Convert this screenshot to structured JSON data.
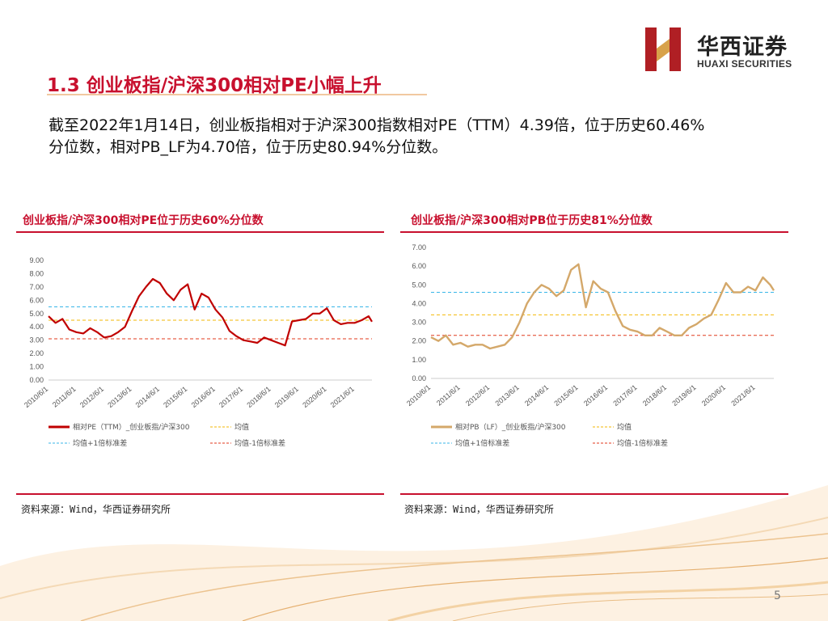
{
  "header": {
    "logo_cn": "华西证券",
    "logo_en": "HUAXI SECURITIES"
  },
  "slide": {
    "title": "1.3 创业板指/沪深300相对PE小幅上升",
    "summary": "截至2022年1月14日，创业板指相对于沪深300指数相对PE（TTM）4.39倍，位于历史60.46%分位数，相对PB_LF为4.70倍，位于历史80.94%分位数。",
    "page_number": "5"
  },
  "colors": {
    "accent_red": "#c8102e",
    "pe_line": "#c00000",
    "pb_line": "#d4a86a",
    "mean_line": "#f2b705",
    "plus1_line": "#38b6e8",
    "minus1_line": "#e03a1e"
  },
  "chart_data": [
    {
      "type": "line",
      "title": "创业板指/沪深300相对PE位于历史60%分位数",
      "source": "资料来源：Wind，华西证券研究所",
      "ylim": [
        0,
        9
      ],
      "yticks": [
        "0.00",
        "1.00",
        "2.00",
        "3.00",
        "4.00",
        "5.00",
        "6.00",
        "7.00",
        "8.00",
        "9.00"
      ],
      "xlabels": [
        "2010/6/1",
        "2011/6/1",
        "2012/6/1",
        "2013/6/1",
        "2014/6/1",
        "2015/6/1",
        "2016/6/1",
        "2017/6/1",
        "2018/6/1",
        "2019/6/1",
        "2020/6/1",
        "2021/6/1"
      ],
      "x_start": "2010-06-01",
      "x_end": "2022-01-14",
      "series": [
        {
          "name": "相对PE（TTM）_创业板指/沪深300",
          "x": [
            "2010-06-01",
            "2010-09-01",
            "2010-12-01",
            "2011-03-01",
            "2011-06-01",
            "2011-09-01",
            "2011-12-01",
            "2012-03-01",
            "2012-06-01",
            "2012-09-01",
            "2012-12-01",
            "2013-03-01",
            "2013-06-01",
            "2013-09-01",
            "2013-12-01",
            "2014-03-01",
            "2014-06-01",
            "2014-09-01",
            "2014-12-01",
            "2015-03-01",
            "2015-06-01",
            "2015-09-01",
            "2015-12-01",
            "2016-03-01",
            "2016-06-01",
            "2016-09-01",
            "2016-12-01",
            "2017-03-01",
            "2017-06-01",
            "2017-09-01",
            "2017-12-01",
            "2018-03-01",
            "2018-06-01",
            "2018-09-01",
            "2018-12-01",
            "2019-03-01",
            "2019-06-01",
            "2019-09-01",
            "2019-12-01",
            "2020-03-01",
            "2020-06-01",
            "2020-09-01",
            "2020-12-01",
            "2021-03-01",
            "2021-06-01",
            "2021-09-01",
            "2021-12-01",
            "2022-01-14"
          ],
          "values": [
            4.8,
            4.3,
            4.6,
            3.8,
            3.6,
            3.5,
            3.9,
            3.6,
            3.2,
            3.3,
            3.6,
            4.0,
            5.2,
            6.3,
            7.0,
            7.6,
            7.3,
            6.5,
            6.0,
            6.8,
            7.2,
            5.3,
            6.5,
            6.2,
            5.3,
            4.7,
            3.7,
            3.3,
            3.0,
            2.9,
            2.8,
            3.2,
            3.0,
            2.8,
            2.6,
            4.4,
            4.5,
            4.6,
            5.0,
            5.0,
            5.4,
            4.5,
            4.2,
            4.3,
            4.3,
            4.5,
            4.8,
            4.39
          ]
        }
      ],
      "reference_lines": [
        {
          "name": "均值",
          "value": 4.5
        },
        {
          "name": "均值+1倍标准差",
          "value": 5.5
        },
        {
          "name": "均值-1倍标准差",
          "value": 3.1
        }
      ]
    },
    {
      "type": "line",
      "title": "创业板指/沪深300相对PB位于历史81%分位数",
      "source": "资料来源：Wind，华西证券研究所",
      "ylim": [
        0,
        7
      ],
      "yticks": [
        "0.00",
        "1.00",
        "2.00",
        "3.00",
        "4.00",
        "5.00",
        "6.00",
        "7.00"
      ],
      "xlabels": [
        "2010/6/1",
        "2011/6/1",
        "2012/6/1",
        "2013/6/1",
        "2014/6/1",
        "2015/6/1",
        "2016/6/1",
        "2017/6/1",
        "2018/6/1",
        "2019/6/1",
        "2020/6/1",
        "2021/6/1"
      ],
      "x_start": "2010-06-01",
      "x_end": "2022-01-14",
      "series": [
        {
          "name": "相对PB（LF）_创业板指/沪深300",
          "x": [
            "2010-06-01",
            "2010-09-01",
            "2010-12-01",
            "2011-03-01",
            "2011-06-01",
            "2011-09-01",
            "2011-12-01",
            "2012-03-01",
            "2012-06-01",
            "2012-09-01",
            "2012-12-01",
            "2013-03-01",
            "2013-06-01",
            "2013-09-01",
            "2013-12-01",
            "2014-03-01",
            "2014-06-01",
            "2014-09-01",
            "2014-12-01",
            "2015-03-01",
            "2015-06-01",
            "2015-09-01",
            "2015-12-01",
            "2016-03-01",
            "2016-06-01",
            "2016-09-01",
            "2016-12-01",
            "2017-03-01",
            "2017-06-01",
            "2017-09-01",
            "2017-12-01",
            "2018-03-01",
            "2018-06-01",
            "2018-09-01",
            "2018-12-01",
            "2019-03-01",
            "2019-06-01",
            "2019-09-01",
            "2019-12-01",
            "2020-03-01",
            "2020-06-01",
            "2020-09-01",
            "2020-12-01",
            "2021-03-01",
            "2021-06-01",
            "2021-09-01",
            "2021-12-01",
            "2022-01-14"
          ],
          "values": [
            2.2,
            2.0,
            2.3,
            1.8,
            1.9,
            1.7,
            1.8,
            1.8,
            1.6,
            1.7,
            1.8,
            2.2,
            3.0,
            4.0,
            4.6,
            5.0,
            4.8,
            4.4,
            4.7,
            5.8,
            6.1,
            3.8,
            5.2,
            4.8,
            4.6,
            3.6,
            2.8,
            2.6,
            2.5,
            2.3,
            2.3,
            2.7,
            2.5,
            2.3,
            2.3,
            2.7,
            2.9,
            3.2,
            3.4,
            4.2,
            5.1,
            4.6,
            4.6,
            4.9,
            4.7,
            5.4,
            5.0,
            4.7
          ]
        }
      ],
      "reference_lines": [
        {
          "name": "均值",
          "value": 3.4
        },
        {
          "name": "均值+1倍标准差",
          "value": 4.6
        },
        {
          "name": "均值-1倍标准差",
          "value": 2.3
        }
      ]
    }
  ]
}
